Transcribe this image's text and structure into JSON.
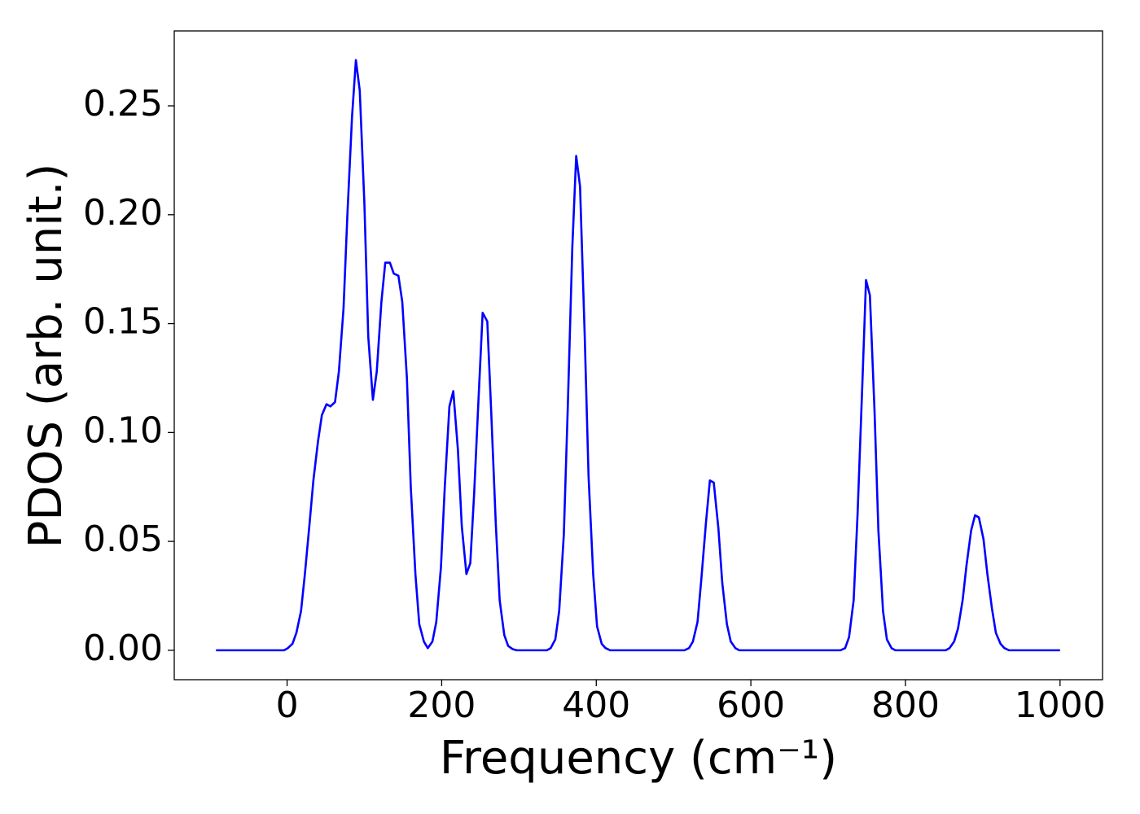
{
  "chart_data": {
    "type": "line",
    "xlabel": "Frequency (cm⁻¹)",
    "ylabel": "PDOS (arb. unit.)",
    "color": "#0000ff",
    "xlim": [
      -146,
      1055
    ],
    "ylim": [
      -0.0135,
      0.2844
    ],
    "xticks": [
      0,
      200,
      400,
      600,
      800,
      1000
    ],
    "yticks": [
      {
        "value": 0,
        "label": "0.00"
      },
      {
        "value": 0.05,
        "label": "0.05"
      },
      {
        "value": 0.1,
        "label": "0.10"
      },
      {
        "value": 0.15,
        "label": "0.15"
      },
      {
        "value": 0.2,
        "label": "0.20"
      },
      {
        "value": 0.25,
        "label": "0.25"
      }
    ],
    "x": [
      -92,
      -4,
      1,
      7,
      12,
      18,
      23,
      29,
      34,
      40,
      45,
      51,
      56,
      62,
      67,
      73,
      78,
      84,
      89,
      94,
      100,
      105,
      111,
      116,
      122,
      127,
      133,
      138,
      144,
      149,
      155,
      160,
      166,
      171,
      177,
      182,
      188,
      193,
      199,
      204,
      210,
      215,
      221,
      226,
      232,
      237,
      242,
      248,
      253,
      259,
      264,
      270,
      275,
      281,
      286,
      292,
      297,
      336,
      341,
      347,
      352,
      358,
      363,
      369,
      374,
      379,
      385,
      390,
      396,
      401,
      407,
      412,
      418,
      514,
      520,
      525,
      531,
      536,
      542,
      547,
      552,
      558,
      563,
      569,
      574,
      580,
      585,
      716,
      722,
      727,
      733,
      738,
      744,
      749,
      754,
      760,
      765,
      771,
      776,
      782,
      787,
      852,
      857,
      863,
      868,
      874,
      879,
      885,
      890,
      895,
      901,
      906,
      912,
      917,
      923,
      928,
      934,
      1000
    ],
    "values": [
      0,
      0,
      0.001,
      0.003,
      0.008,
      0.018,
      0.035,
      0.058,
      0.078,
      0.096,
      0.108,
      0.113,
      0.112,
      0.114,
      0.128,
      0.157,
      0.2,
      0.245,
      0.271,
      0.257,
      0.205,
      0.144,
      0.115,
      0.128,
      0.16,
      0.178,
      0.178,
      0.173,
      0.172,
      0.16,
      0.125,
      0.075,
      0.035,
      0.012,
      0.004,
      0.001,
      0.004,
      0.013,
      0.038,
      0.075,
      0.112,
      0.119,
      0.092,
      0.057,
      0.035,
      0.04,
      0.072,
      0.118,
      0.155,
      0.151,
      0.11,
      0.058,
      0.023,
      0.007,
      0.002,
      0.0005,
      0,
      0,
      0.001,
      0.005,
      0.018,
      0.053,
      0.11,
      0.185,
      0.227,
      0.213,
      0.145,
      0.08,
      0.035,
      0.011,
      0.003,
      0.001,
      0,
      0,
      0.001,
      0.004,
      0.013,
      0.033,
      0.059,
      0.078,
      0.077,
      0.056,
      0.031,
      0.012,
      0.004,
      0.001,
      0,
      0,
      0.001,
      0.006,
      0.023,
      0.062,
      0.12,
      0.17,
      0.163,
      0.11,
      0.055,
      0.018,
      0.005,
      0.001,
      0,
      0,
      0.001,
      0.004,
      0.01,
      0.023,
      0.039,
      0.055,
      0.062,
      0.061,
      0.051,
      0.035,
      0.019,
      0.008,
      0.003,
      0.001,
      0,
      0
    ]
  }
}
